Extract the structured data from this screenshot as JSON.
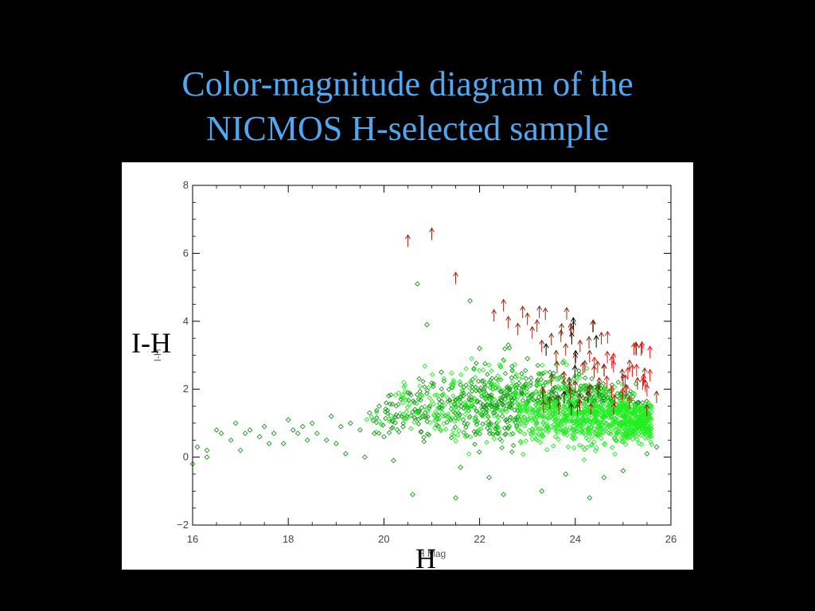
{
  "slide": {
    "title_line1": "Color-magnitude diagram of the",
    "title_line2": "NICMOS H-selected sample",
    "ylabel_overlay": "I-H",
    "xlabel_overlay": "H"
  },
  "colors": {
    "background": "#000000",
    "title": "#4fa8f0",
    "panel": "#ffffff",
    "points_faint": "#1a9a1a",
    "points_bright": "#22ee22",
    "arrows": "#8b2a10",
    "arrows_bright": "#ee1111"
  },
  "chart_data": {
    "type": "scatter",
    "title": "",
    "xlabel": "H Mag",
    "ylabel": "I-H",
    "xlim": [
      16,
      26
    ],
    "ylim": [
      -2,
      8
    ],
    "xticks": [
      16,
      18,
      20,
      22,
      24,
      26
    ],
    "yticks": [
      -2,
      0,
      2,
      4,
      6,
      8
    ],
    "grid": false,
    "legend": "none",
    "series": [
      {
        "marker": "diamond",
        "points": [
          [
            16.0,
            -0.2
          ],
          [
            16.1,
            0.3
          ],
          [
            16.3,
            0.2
          ],
          [
            16.3,
            0.0
          ],
          [
            16.5,
            0.8
          ],
          [
            16.6,
            0.7
          ],
          [
            16.8,
            0.5
          ],
          [
            16.9,
            1.0
          ],
          [
            17.0,
            0.2
          ],
          [
            17.1,
            0.7
          ],
          [
            17.2,
            0.8
          ],
          [
            17.4,
            0.6
          ],
          [
            17.5,
            0.9
          ],
          [
            17.6,
            0.4
          ],
          [
            17.7,
            0.7
          ],
          [
            17.9,
            0.4
          ],
          [
            18.0,
            1.1
          ],
          [
            18.1,
            0.8
          ],
          [
            18.2,
            0.7
          ],
          [
            18.3,
            0.9
          ],
          [
            18.4,
            0.5
          ],
          [
            18.5,
            1.0
          ],
          [
            18.6,
            0.7
          ],
          [
            18.8,
            0.5
          ],
          [
            18.9,
            1.2
          ],
          [
            19.0,
            0.4
          ],
          [
            19.1,
            0.9
          ],
          [
            19.2,
            0.1
          ],
          [
            19.3,
            1.0
          ],
          [
            19.5,
            0.8
          ],
          [
            19.6,
            0.0
          ],
          [
            19.7,
            1.3
          ],
          [
            19.8,
            0.7
          ],
          [
            19.9,
            1.5
          ],
          [
            20.0,
            0.6
          ],
          [
            20.1,
            1.8
          ],
          [
            20.2,
            -0.1
          ],
          [
            20.3,
            1.2
          ],
          [
            20.4,
            0.9
          ],
          [
            20.5,
            1.9
          ],
          [
            20.6,
            -1.1
          ],
          [
            20.7,
            5.1
          ],
          [
            20.9,
            3.9
          ],
          [
            21.5,
            -1.2
          ],
          [
            22.5,
            -1.1
          ],
          [
            23.3,
            -1.0
          ],
          [
            24.3,
            -1.2
          ],
          [
            21.8,
            4.6
          ],
          [
            22.0,
            3.2
          ],
          [
            21.2,
            2.5
          ],
          [
            22.6,
            3.3
          ],
          [
            23.0,
            2.9
          ],
          [
            21.6,
            -0.3
          ],
          [
            22.2,
            -0.6
          ],
          [
            24.6,
            -0.6
          ],
          [
            25.0,
            -0.4
          ],
          [
            25.5,
            0.1
          ],
          [
            25.7,
            0.3
          ],
          [
            25.3,
            1.6
          ],
          [
            23.8,
            -0.5
          ]
        ]
      },
      {
        "marker": "up-arrow",
        "points": [
          [
            20.5,
            6.4
          ],
          [
            21.0,
            6.6
          ],
          [
            21.5,
            5.3
          ],
          [
            22.3,
            4.2
          ],
          [
            22.5,
            4.5
          ],
          [
            22.6,
            4.0
          ],
          [
            22.8,
            3.8
          ],
          [
            22.9,
            4.3
          ],
          [
            23.0,
            4.1
          ],
          [
            23.1,
            3.7
          ],
          [
            23.2,
            3.9
          ],
          [
            23.3,
            3.3
          ],
          [
            23.5,
            3.5
          ],
          [
            23.6,
            3.0
          ],
          [
            23.7,
            3.6
          ],
          [
            23.8,
            3.2
          ],
          [
            24.0,
            2.9
          ],
          [
            24.1,
            3.3
          ],
          [
            24.2,
            2.7
          ],
          [
            24.3,
            3.0
          ],
          [
            24.4,
            2.8
          ],
          [
            24.6,
            2.6
          ],
          [
            24.8,
            2.7
          ],
          [
            25.0,
            2.3
          ],
          [
            25.1,
            2.5
          ],
          [
            25.3,
            2.2
          ],
          [
            25.5,
            2.0
          ],
          [
            25.7,
            1.8
          ],
          [
            24.0,
            2.1
          ],
          [
            23.5,
            2.3
          ],
          [
            23.9,
            1.9
          ],
          [
            24.5,
            2.2
          ]
        ]
      }
    ]
  }
}
